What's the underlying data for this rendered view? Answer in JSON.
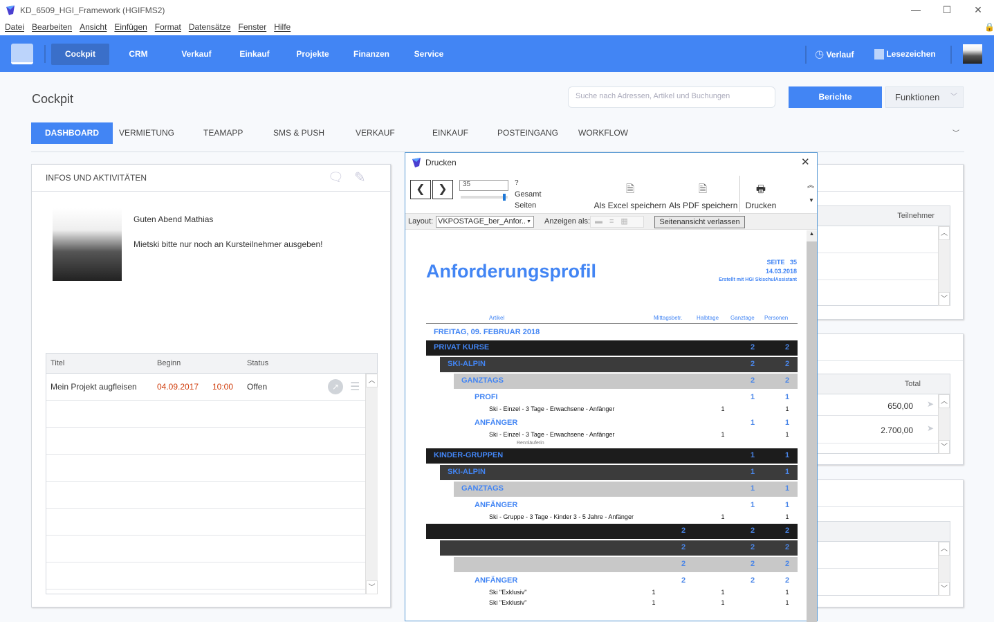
{
  "window": {
    "title": "KD_6509_HGI_Framework (HGIFMS2)",
    "minimize": "—",
    "maximize": "☐",
    "close": "✕"
  },
  "menu": [
    "Datei",
    "Bearbeiten",
    "Ansicht",
    "Einfügen",
    "Format",
    "Datensätze",
    "Fenster",
    "Hilfe"
  ],
  "nav": {
    "items": [
      "Cockpit",
      "CRM",
      "Verkauf",
      "Einkauf",
      "Projekte",
      "Finanzen",
      "Service"
    ],
    "active": "Cockpit",
    "verlauf": "Verlauf",
    "lesezeichen": "Lesezeichen"
  },
  "header": {
    "title": "Cockpit",
    "search_placeholder": "Suche nach Adressen, Artikel und Buchungen",
    "berichte": "Berichte",
    "funktionen": "Funktionen"
  },
  "tabs": [
    "DASHBOARD",
    "VERMIETUNG",
    "TEAMAPP",
    "SMS & PUSH",
    "VERKAUF",
    "EINKAUF",
    "POSTEINGANG",
    "WORKFLOW"
  ],
  "infos": {
    "title": "INFOS UND AKTIVITÄTEN",
    "greeting": "Guten Abend Mathias",
    "message": "Mietski bitte nur noch an Kursteilnehmer ausgeben!",
    "columns": [
      "Titel",
      "Beginn",
      "Status"
    ],
    "rows": [
      {
        "titel": "Mein Projekt augfleisen",
        "datum": "04.09.2017",
        "zeit": "10:00",
        "status": "Offen"
      }
    ]
  },
  "right_panels": {
    "teilnehmer_header": "Teilnehmer",
    "total_header": "Total",
    "totals": [
      "650,00",
      "2.700,00"
    ]
  },
  "dialog": {
    "title": "Drucken",
    "page_input": "35",
    "total_pages": "?",
    "gesamt": "Gesamt",
    "seiten": "Seiten",
    "page_slider_fraction": 0.95,
    "excel": "Als Excel speichern",
    "pdf": "Als PDF speichern",
    "print": "Drucken",
    "layout_label": "Layout:",
    "layout_value": "VKPOSTAGE_ber_Anfor...",
    "anzeigen_label": "Anzeigen als:",
    "exit_preview": "Seitenansicht verlassen"
  },
  "report": {
    "title": "Anforderungsprofil",
    "seite_label": "SEITE",
    "seite": "35",
    "date": "14.03.2018",
    "created": "Erstellt mit HGI SkischulAssistant",
    "columns": [
      "Artikel",
      "Mittagsbetr.",
      "Halbtage",
      "Ganztage",
      "Personen"
    ],
    "day": "FREITAG, 09. FEBRUAR 2018",
    "accent": "#4285f4",
    "rows": [
      {
        "type": "black",
        "label": "PRIVAT KURSE",
        "cells": [
          "",
          "",
          "",
          "2",
          "2"
        ]
      },
      {
        "type": "dark",
        "label": "SKI-ALPIN",
        "cells": [
          "",
          "",
          "",
          "2",
          "2"
        ]
      },
      {
        "type": "gray",
        "label": "GANZTAGS",
        "cells": [
          "",
          "",
          "",
          "2",
          "2"
        ]
      },
      {
        "type": "sub",
        "label": "PROFI",
        "cells": [
          "",
          "",
          "",
          "1",
          "1"
        ]
      },
      {
        "type": "detail",
        "label": "Ski - Einzel - 3 Tage - Erwachsene - Anfänger",
        "cells": [
          "",
          "",
          "1",
          "",
          "1"
        ]
      },
      {
        "type": "sub",
        "label": "ANFÄNGER",
        "cells": [
          "",
          "",
          "",
          "1",
          "1"
        ]
      },
      {
        "type": "detail",
        "label": "Ski - Einzel - 3 Tage - Erwachsene - Anfänger",
        "cells": [
          "",
          "",
          "1",
          "",
          "1"
        ]
      },
      {
        "type": "note",
        "label": "Rennläuferin",
        "cells": [
          "",
          "",
          "",
          "",
          ""
        ]
      },
      {
        "type": "black",
        "label": "KINDER-GRUPPEN",
        "cells": [
          "",
          "",
          "",
          "1",
          "1"
        ]
      },
      {
        "type": "dark",
        "label": "SKI-ALPIN",
        "cells": [
          "",
          "",
          "",
          "1",
          "1"
        ]
      },
      {
        "type": "gray",
        "label": "GANZTAGS",
        "cells": [
          "",
          "",
          "",
          "1",
          "1"
        ]
      },
      {
        "type": "sub",
        "label": "ANFÄNGER",
        "cells": [
          "",
          "",
          "",
          "1",
          "1"
        ]
      },
      {
        "type": "detail",
        "label": "Ski - Gruppe - 3 Tage - Kinder 3 - 5 Jahre -  Anfänger",
        "cells": [
          "",
          "",
          "1",
          "",
          "1"
        ]
      },
      {
        "type": "black",
        "label": "",
        "cells": [
          "",
          "2",
          "",
          "2",
          "2"
        ]
      },
      {
        "type": "dark",
        "label": "",
        "cells": [
          "",
          "2",
          "",
          "2",
          "2"
        ]
      },
      {
        "type": "gray",
        "label": "",
        "cells": [
          "",
          "2",
          "",
          "2",
          "2"
        ]
      },
      {
        "type": "sub",
        "label": "ANFÄNGER",
        "cells": [
          "",
          "2",
          "",
          "2",
          "2"
        ]
      },
      {
        "type": "detail",
        "label": "Ski \"Exklusiv\"",
        "cells": [
          "1",
          "",
          "1",
          "",
          "1"
        ]
      },
      {
        "type": "detail",
        "label": "Ski \"Exklusiv\"",
        "cells": [
          "1",
          "",
          "1",
          "",
          "1"
        ]
      }
    ]
  }
}
